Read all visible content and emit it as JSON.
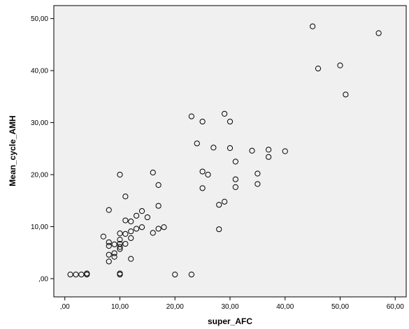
{
  "chart_data": {
    "type": "scatter",
    "title": "",
    "xlabel": "super_AFC",
    "ylabel": "Mean_cycle_AMH",
    "xlim": [
      -2,
      62
    ],
    "ylim": [
      -3.5,
      52.5
    ],
    "xticks": [
      0,
      10,
      20,
      30,
      40,
      50,
      60
    ],
    "yticks": [
      0,
      10,
      20,
      30,
      40,
      50
    ],
    "xtick_labels": [
      ",00",
      "10,00",
      "20,00",
      "30,00",
      "40,00",
      "50,00",
      "60,00"
    ],
    "ytick_labels": [
      ",00",
      "10,00",
      "20,00",
      "30,00",
      "40,00",
      "50,00"
    ],
    "plot_background": "#f0f0f0",
    "marker_color": "#000000",
    "marker": "hollow-circle",
    "grid": false,
    "legend": "none",
    "series": [
      {
        "points": [
          [
            1,
            0.8
          ],
          [
            2,
            0.8
          ],
          [
            3,
            0.8
          ],
          [
            4,
            0.8
          ],
          [
            4,
            1.0
          ],
          [
            10,
            0.8
          ],
          [
            10,
            1.0
          ],
          [
            20,
            0.8
          ],
          [
            23,
            0.8
          ],
          [
            7,
            8.1
          ],
          [
            8,
            13.2
          ],
          [
            8,
            7.0
          ],
          [
            8,
            6.3
          ],
          [
            8,
            4.6
          ],
          [
            8,
            3.3
          ],
          [
            9,
            6.6
          ],
          [
            9,
            4.9
          ],
          [
            9,
            4.2
          ],
          [
            10,
            20.0
          ],
          [
            10,
            8.7
          ],
          [
            10,
            7.5
          ],
          [
            10,
            6.7
          ],
          [
            10,
            6.1
          ],
          [
            10,
            5.7
          ],
          [
            11,
            15.8
          ],
          [
            11,
            11.2
          ],
          [
            11,
            8.6
          ],
          [
            11,
            6.7
          ],
          [
            12,
            11.0
          ],
          [
            12,
            9.1
          ],
          [
            12,
            7.8
          ],
          [
            12,
            3.8
          ],
          [
            13,
            12.1
          ],
          [
            13,
            9.6
          ],
          [
            14,
            13.0
          ],
          [
            14,
            9.9
          ],
          [
            15,
            11.8
          ],
          [
            16,
            20.4
          ],
          [
            16,
            8.8
          ],
          [
            17,
            18.0
          ],
          [
            17,
            14.0
          ],
          [
            17,
            9.6
          ],
          [
            18,
            9.9
          ],
          [
            23,
            31.2
          ],
          [
            24,
            26.0
          ],
          [
            25,
            30.2
          ],
          [
            25,
            20.6
          ],
          [
            25,
            17.4
          ],
          [
            26,
            20.0
          ],
          [
            27,
            25.2
          ],
          [
            28,
            14.2
          ],
          [
            28,
            9.5
          ],
          [
            29,
            31.7
          ],
          [
            29,
            14.8
          ],
          [
            30,
            30.2
          ],
          [
            30,
            25.1
          ],
          [
            31,
            22.5
          ],
          [
            31,
            19.1
          ],
          [
            31,
            17.6
          ],
          [
            34,
            24.6
          ],
          [
            35,
            20.2
          ],
          [
            35,
            18.2
          ],
          [
            37,
            24.8
          ],
          [
            37,
            23.4
          ],
          [
            40,
            24.5
          ],
          [
            45,
            48.5
          ],
          [
            46,
            40.4
          ],
          [
            50,
            41.0
          ],
          [
            51,
            35.4
          ],
          [
            57,
            47.2
          ]
        ]
      }
    ]
  }
}
